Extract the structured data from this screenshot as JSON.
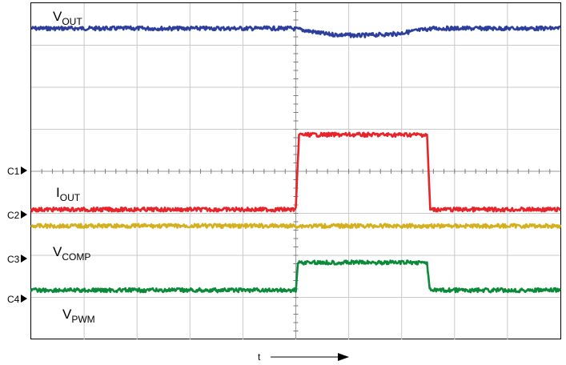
{
  "chart_data": {
    "type": "line",
    "x_axis_label": "t",
    "grid": true,
    "grid_divisions": {
      "x": 10,
      "y": 8
    },
    "channel_markers": [
      "C1",
      "C2",
      "C3",
      "C4"
    ],
    "series": [
      {
        "name": "V",
        "name_sub": "OUT",
        "color": "#2c3e9e",
        "points": [
          [
            0,
            7.4
          ],
          [
            4.9,
            7.4
          ],
          [
            5.1,
            7.37
          ],
          [
            5.6,
            7.26
          ],
          [
            6.2,
            7.23
          ],
          [
            6.9,
            7.27
          ],
          [
            7.3,
            7.35
          ],
          [
            7.6,
            7.4
          ],
          [
            10,
            7.4
          ]
        ]
      },
      {
        "name": "I",
        "name_sub": "OUT",
        "color": "#e8232a",
        "points": [
          [
            0,
            3.09
          ],
          [
            5.0,
            3.09
          ],
          [
            5.06,
            4.87
          ],
          [
            7.48,
            4.87
          ],
          [
            7.54,
            3.09
          ],
          [
            10,
            3.09
          ]
        ]
      },
      {
        "name": "V",
        "name_sub": "COMP",
        "color": "#d4b01e",
        "points": [
          [
            0,
            2.7
          ],
          [
            10,
            2.7
          ]
        ]
      },
      {
        "name": "V",
        "name_sub": "PWM",
        "color": "#0b8a3a",
        "points": [
          [
            0,
            1.17
          ],
          [
            5.0,
            1.17
          ],
          [
            5.04,
            1.83
          ],
          [
            7.48,
            1.83
          ],
          [
            7.53,
            1.17
          ],
          [
            10,
            1.17
          ]
        ]
      }
    ]
  }
}
